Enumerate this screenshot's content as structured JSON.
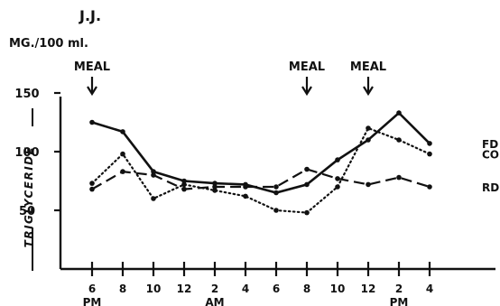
{
  "header": {
    "subject": "J.J.",
    "unit_label": "MG./100 ml."
  },
  "chart_data": {
    "type": "line",
    "ylabel": "TRIGLYCERIDE",
    "ylim": [
      0,
      150
    ],
    "yticks": [
      50,
      100,
      150
    ],
    "categories": [
      "6",
      "8",
      "10",
      "12",
      "2",
      "4",
      "6",
      "8",
      "10",
      "12",
      "2",
      "4"
    ],
    "period_labels": [
      {
        "text": "PM",
        "at_index": 0
      },
      {
        "text": "AM",
        "at_index": 4
      },
      {
        "text": "PM",
        "at_index": 10
      }
    ],
    "annotations": [
      {
        "text": "MEAL",
        "at_index": 0
      },
      {
        "text": "MEAL",
        "at_index": 7
      },
      {
        "text": "MEAL",
        "at_index": 9
      }
    ],
    "series": [
      {
        "name": "FD",
        "style": "solid",
        "values": [
          125,
          117,
          83,
          75,
          73,
          72,
          65,
          72,
          93,
          110,
          133,
          107
        ]
      },
      {
        "name": "CO",
        "style": "dotted",
        "values": [
          73,
          98,
          60,
          72,
          67,
          62,
          50,
          48,
          70,
          120,
          110,
          98
        ]
      },
      {
        "name": "RD",
        "style": "dashed",
        "values": [
          68,
          83,
          80,
          68,
          70,
          70,
          70,
          85,
          77,
          72,
          78,
          70
        ]
      }
    ]
  }
}
